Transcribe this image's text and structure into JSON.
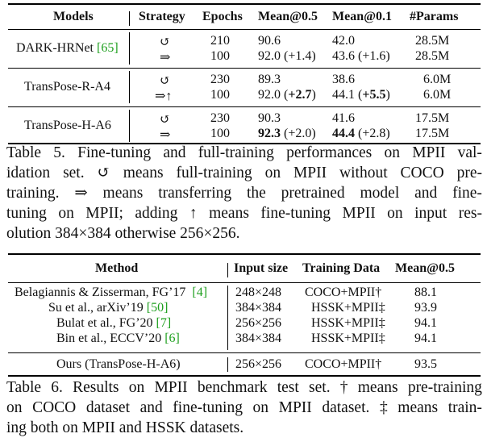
{
  "table5": {
    "headers": [
      "Models",
      "Strategy",
      "Epochs",
      "Mean@0.5",
      "Mean@0.1",
      "#Params"
    ],
    "groups": [
      {
        "model": "DARK-HRNet",
        "model_cite": "[65]",
        "rows": [
          {
            "strategy": "↺",
            "epochs": "210",
            "mean05": "90.6",
            "mean01": "42.0",
            "params": "28.5M"
          },
          {
            "strategy": "⇒",
            "epochs": "100",
            "mean05": "92.0 (+1.4)",
            "mean01": "43.6 (+1.6)",
            "params": "28.5M"
          }
        ]
      },
      {
        "model": "TransPose-R-A4",
        "rows": [
          {
            "strategy": "↺",
            "epochs": "230",
            "mean05": "89.3",
            "mean01": "38.6",
            "params": "6.0M"
          },
          {
            "strategy": "⇒↑",
            "epochs": "100",
            "mean05_base": "92.0 (",
            "mean05_bold": "+2.7",
            "mean05_end": ")",
            "mean01_base": "44.1 (",
            "mean01_bold": "+5.5",
            "mean01_end": ")",
            "params": "6.0M"
          }
        ]
      },
      {
        "model": "TransPose-H-A6",
        "rows": [
          {
            "strategy": "↺",
            "epochs": "230",
            "mean05": "90.3",
            "mean01": "41.6",
            "params": "17.5M"
          },
          {
            "strategy": "⇒",
            "epochs": "100",
            "mean05_bold": "92.3",
            "mean05_rest": " (+2.0)",
            "mean01_bold": "44.4",
            "mean01_rest": " (+2.8)",
            "params": "17.5M"
          }
        ]
      }
    ],
    "caption_lines": [
      "Table 5. Fine-tuning and full-training performances on MPII val-",
      "idation set. ↺ means full-training on MPII without COCO pre-",
      "training. ⇒ means transferring the pretrained model and fine-",
      "tuning on MPII; adding ↑ means fine-tuning MPII on input res-",
      "olution 384×384 otherwise 256×256."
    ]
  },
  "table6": {
    "headers": [
      "Method",
      "Input size",
      "Training Data",
      "Mean@0.5"
    ],
    "rows": [
      {
        "method": "Belagiannis & Zisserman, FG’17",
        "cite": "[4]",
        "input": "248×248",
        "data": "COCO+MPII†",
        "mean": "88.1"
      },
      {
        "method": "Su et al., arXiv’19",
        "cite": "[50]",
        "input": "384×384",
        "data": "HSSK+MPII‡",
        "mean": "93.9"
      },
      {
        "method": "Bulat et al., FG’20",
        "cite": "[7]",
        "input": "256×256",
        "data": "HSSK+MPII‡",
        "mean": "94.1"
      },
      {
        "method": "Bin et al., ECCV’20",
        "cite": "[6]",
        "input": "384×384",
        "data": "HSSK+MPII‡",
        "mean": "94.1"
      }
    ],
    "ours": {
      "method": "Ours (TransPose-H-A6)",
      "input": "256×256",
      "data": "COCO+MPII†",
      "mean": "93.5"
    },
    "caption_lines": [
      "Table 6. Results on MPII benchmark test set. † means pre-training",
      "on COCO dataset and fine-tuning on MPII dataset. ‡ means train-",
      "ing both on MPII and HSSK datasets."
    ]
  }
}
